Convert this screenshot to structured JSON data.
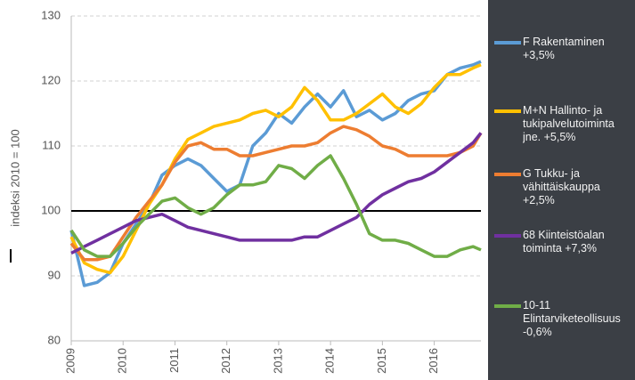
{
  "chart_data": {
    "type": "line",
    "y_label": "indeksi 2010 = 100",
    "x": [
      2009,
      2009.25,
      2009.5,
      2009.75,
      2010,
      2010.25,
      2010.5,
      2010.75,
      2011,
      2011.25,
      2011.5,
      2011.75,
      2012,
      2012.25,
      2012.5,
      2012.75,
      2013,
      2013.25,
      2013.5,
      2013.75,
      2014,
      2014.25,
      2014.5,
      2014.75,
      2015,
      2015.25,
      2015.5,
      2015.75,
      2016,
      2016.25,
      2016.5,
      2016.75,
      2016.9
    ],
    "series": [
      {
        "name": "F Rakentaminen +3,5%",
        "color": "#5b9bd5",
        "values": [
          97,
          88.5,
          89,
          90.5,
          95,
          98,
          101,
          105.5,
          107,
          108,
          107,
          105,
          103,
          104,
          110,
          112,
          115,
          113.5,
          116,
          118,
          116,
          118.5,
          114.5,
          115.5,
          114,
          115,
          117,
          118,
          118.5,
          121,
          122,
          122.5,
          123
        ]
      },
      {
        "name": "M+N Hallinto- ja tukipalvelutoiminta jne. +5,5%",
        "color": "#ffc000",
        "values": [
          96,
          92,
          91,
          90.5,
          93,
          97,
          101,
          104,
          108,
          111,
          112,
          113,
          113.5,
          114,
          115,
          115.5,
          114.5,
          116,
          119,
          117,
          114,
          114,
          115,
          116.5,
          118,
          116,
          115,
          116.5,
          119,
          121,
          121,
          122,
          122.5
        ]
      },
      {
        "name": "G Tukku- ja vähittäiskauppa +2,5%",
        "color": "#ed7d31",
        "values": [
          95,
          92.5,
          92.5,
          93,
          96,
          99,
          101.5,
          104,
          107.5,
          110,
          110.5,
          109.5,
          109.5,
          108.5,
          108.5,
          109,
          109.5,
          110,
          110,
          110.5,
          112,
          113,
          112.5,
          111.5,
          110,
          109.5,
          108.5,
          108.5,
          108.5,
          108.5,
          109,
          110,
          112
        ]
      },
      {
        "name": "68 Kiinteistöalan toiminta +7,3%",
        "color": "#7030a0",
        "values": [
          93.5,
          94.5,
          95.5,
          96.5,
          97.5,
          98.5,
          99,
          99.5,
          98.5,
          97.5,
          97,
          96.5,
          96,
          95.5,
          95.5,
          95.5,
          95.5,
          95.5,
          96,
          96,
          97,
          98,
          99,
          101,
          102.5,
          103.5,
          104.5,
          105,
          106,
          107.5,
          109,
          110.5,
          112
        ]
      },
      {
        "name": "10-11 Elintarviketeollisuus -0,6%",
        "color": "#70ad47",
        "values": [
          97,
          94,
          93,
          93,
          95,
          97.5,
          99.5,
          101.5,
          102,
          100.5,
          99.5,
          100.5,
          102.5,
          104,
          104,
          104.5,
          107,
          106.5,
          105,
          107,
          108.5,
          105,
          101,
          96.5,
          95.5,
          95.5,
          95,
          94,
          93,
          93,
          94,
          94.5,
          94
        ]
      }
    ],
    "xlim": [
      2009,
      2016.9
    ],
    "xticks": [
      2009,
      2010,
      2011,
      2012,
      2013,
      2014,
      2015,
      2016
    ],
    "ylim": [
      80,
      130
    ],
    "yticks": [
      80,
      90,
      100,
      110,
      120,
      130
    ],
    "hline": 100,
    "grid": true,
    "legend": "right"
  }
}
